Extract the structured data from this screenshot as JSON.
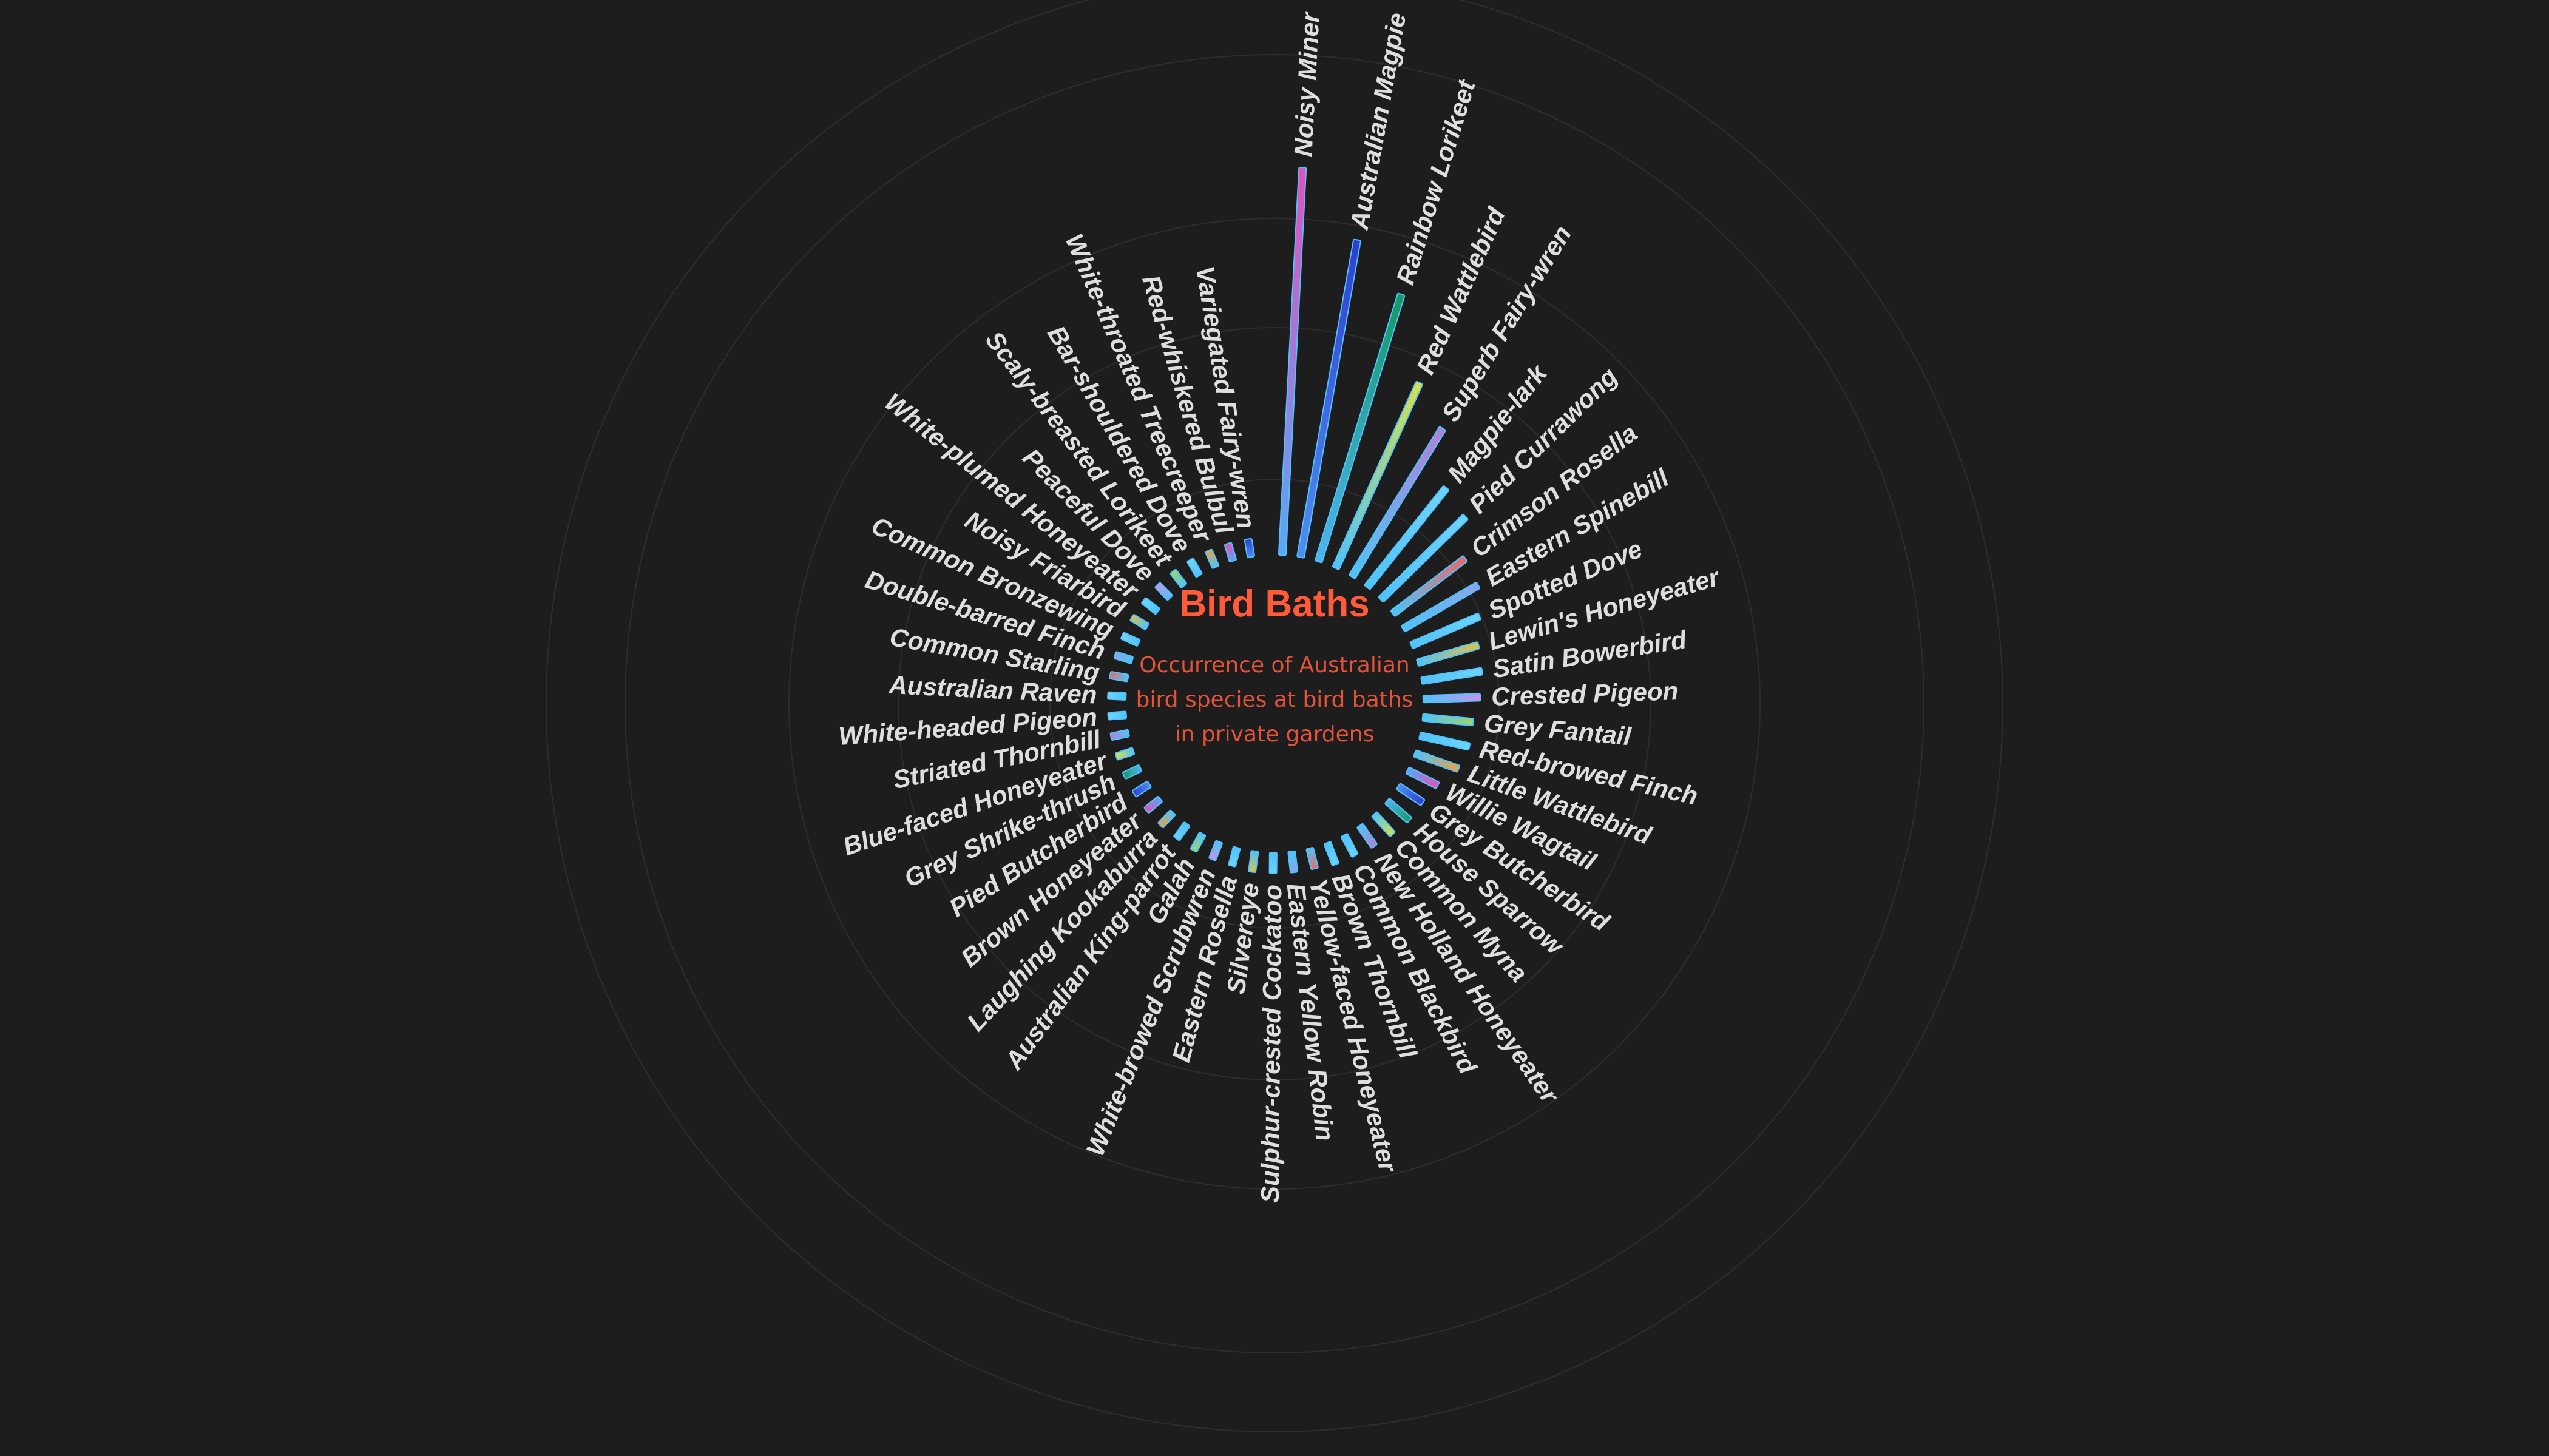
{
  "chart_data": {
    "type": "radial-bar",
    "title": "Bird Baths",
    "subtitle": "Occurrence of Australian bird species at bird baths in private gardens",
    "grid": true,
    "colors": {
      "background": "#1d1d1d",
      "title": "#ff5b3a",
      "subtitle": "#e3533a",
      "label": "#dedede",
      "grid": "#2e2e2e",
      "bar_outline": "#4fc3ff"
    },
    "categories": [
      "Noisy Miner",
      "Australian Magpie",
      "Rainbow Lorikeet",
      "Red Wattlebird",
      "Superb Fairy-wren",
      "Magpie-lark",
      "Pied Currawong",
      "Crimson Rosella",
      "Eastern Spinebill",
      "Spotted Dove",
      "Lewin's Honeyeater",
      "Satin Bowerbird",
      "Crested Pigeon",
      "Grey Fantail",
      "Red-browed Finch",
      "Little Wattlebird",
      "Willie Wagtail",
      "Grey Butcherbird",
      "House Sparrow",
      "Common Myna",
      "New Holland Honeyeater",
      "Common Blackbird",
      "Brown Thornbill",
      "Yellow-faced Honeyeater",
      "Eastern Yellow Robin",
      "Sulphur-crested Cockatoo",
      "Silvereye",
      "Eastern Rosella",
      "White-browed Scrubwren",
      "Galah",
      "Australian King-parrot",
      "Laughing Kookaburra",
      "Brown Honeyeater",
      "Pied Butcherbird",
      "Grey Shrike-thrush",
      "Blue-faced Honeyeater",
      "Striated Thornbill",
      "White-headed Pigeon",
      "Australian Raven",
      "Common Starling",
      "Double-barred Finch",
      "Common Bronzewing",
      "Noisy Friarbird",
      "White-plumed Honeyeater",
      "Peaceful Dove",
      "Scaly-breasted Lorikeet",
      "Bar-shouldered Dove",
      "White-throated Treecreeper",
      "Red-whiskered Bulbul",
      "Variegated Fairy-wren"
    ],
    "values": [
      1830,
      1520,
      1320,
      960,
      820,
      600,
      560,
      430,
      410,
      350,
      300,
      290,
      270,
      240,
      240,
      220,
      160,
      140,
      140,
      130,
      120,
      110,
      110,
      100,
      100,
      100,
      100,
      90,
      90,
      90,
      80,
      80,
      80,
      70,
      70,
      70,
      60,
      60,
      60,
      60,
      60,
      60,
      55,
      55,
      50,
      50,
      50,
      50,
      45,
      40
    ],
    "value_scale_max": 1830
  }
}
